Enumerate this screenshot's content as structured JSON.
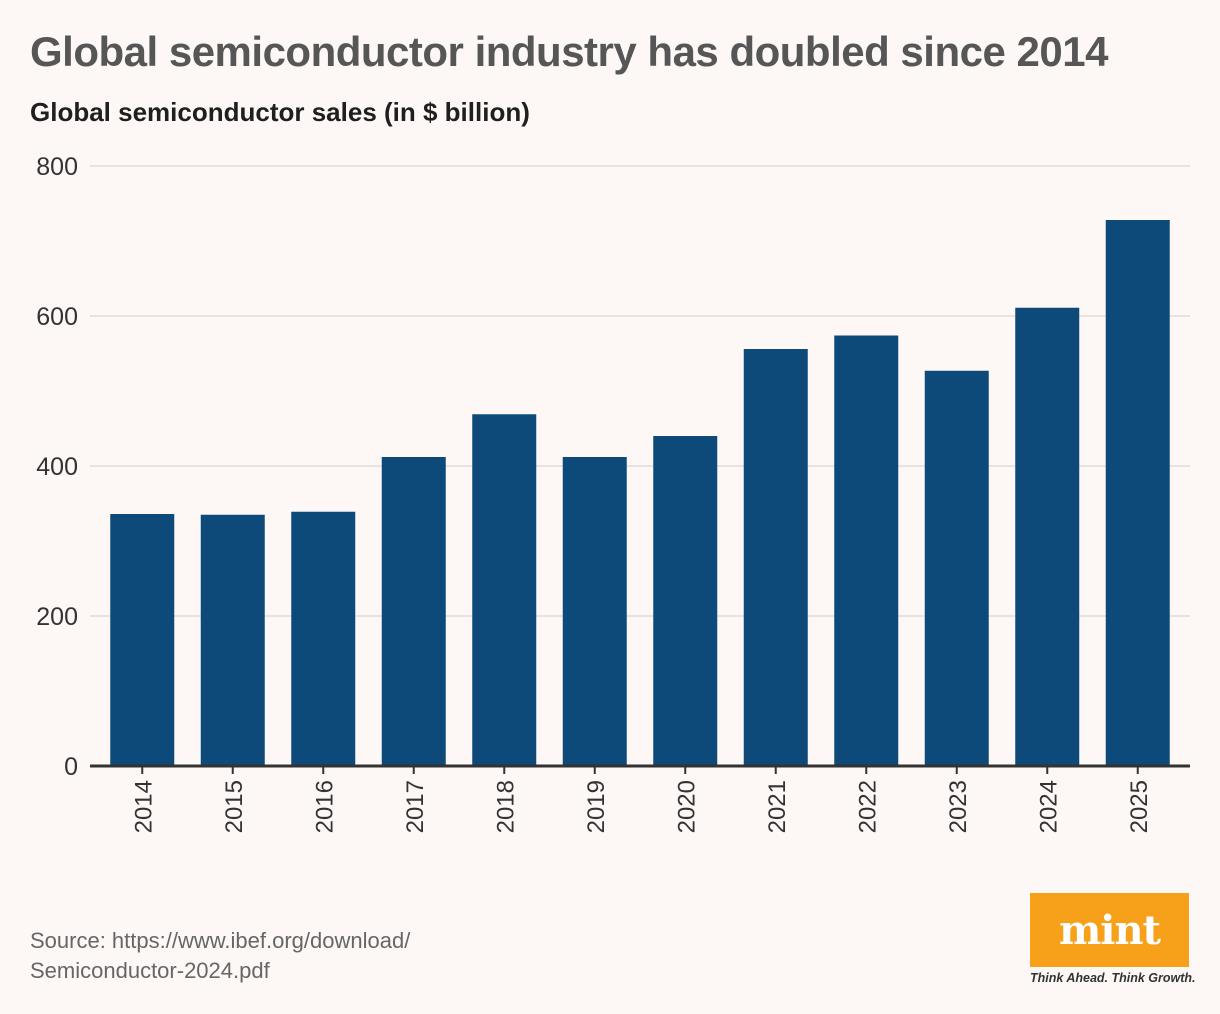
{
  "title": "Global semiconductor industry has doubled since 2014",
  "subtitle": "Global semiconductor sales (in $ billion)",
  "source": {
    "line1": "Source: https://www.ibef.org/download/",
    "line2": "Semiconductor-2024.pdf"
  },
  "logo": {
    "word": "mint",
    "tagline": "Think Ahead. Think Growth.",
    "color": "#f7a11a"
  },
  "colors": {
    "bar": "#0d4a7a",
    "grid": "#e2dcda",
    "axis": "#333333",
    "tick_text": "#333333"
  },
  "chart_data": {
    "type": "bar",
    "title": "Global semiconductor industry has doubled since 2014",
    "subtitle": "Global semiconductor sales (in $ billion)",
    "xlabel": "",
    "ylabel": "",
    "categories": [
      "2014",
      "2015",
      "2016",
      "2017",
      "2018",
      "2019",
      "2020",
      "2021",
      "2022",
      "2023",
      "2024",
      "2025"
    ],
    "values": [
      336,
      335,
      339,
      412,
      469,
      412,
      440,
      556,
      574,
      527,
      611,
      728
    ],
    "ylim": [
      0,
      800
    ],
    "yticks": [
      0,
      200,
      400,
      600,
      800
    ],
    "grid": true,
    "x_tick_rotation": "vertical"
  }
}
